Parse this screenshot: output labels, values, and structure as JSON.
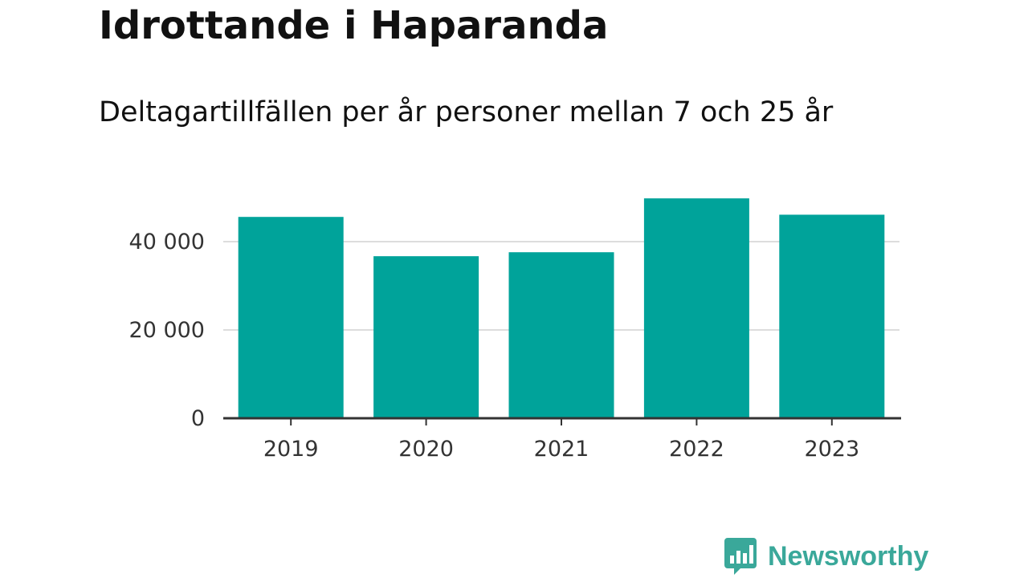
{
  "title": "Idrottande i Haparanda",
  "subtitle": "Deltagartillfällen per år personer mellan 7 och 25 år",
  "brand": {
    "name": "Newsworthy",
    "color": "#3aa89a"
  },
  "colors": {
    "bar": "#00a39a",
    "grid": "#dddddd",
    "axis": "#333333",
    "text": "#333333"
  },
  "chart_data": {
    "type": "bar",
    "categories": [
      "2019",
      "2020",
      "2021",
      "2022",
      "2023"
    ],
    "values": [
      45600,
      36700,
      37600,
      49800,
      46100
    ],
    "ylim": [
      0,
      50000
    ],
    "yticks": [
      0,
      20000,
      40000
    ],
    "ytick_labels": [
      "0",
      "20 000",
      "40 000"
    ],
    "xlabel": "",
    "ylabel": "",
    "grid": true,
    "legend": "none"
  }
}
